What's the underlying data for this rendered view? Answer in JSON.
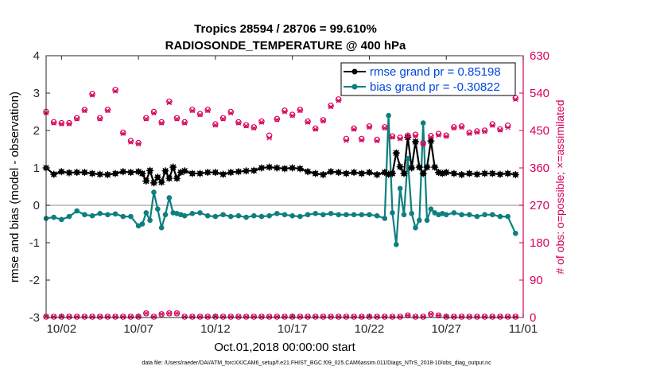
{
  "chart_data": {
    "type": "line",
    "title": "Tropics 28594 / 28706 = 99.610%",
    "subtitle": "RADIOSONDE_TEMPERATURE @ 400 hPa",
    "xlabel": "Oct.01,2018 00:00:00 start",
    "ylabel": "rmse and bias (model - observation)",
    "y2label": "# of obs: o=possible; ×=assimilated",
    "xlim": [
      0,
      31
    ],
    "ylim": [
      -3,
      4
    ],
    "y2lim": [
      0,
      630
    ],
    "xticks": [
      1,
      6,
      11,
      16,
      21,
      26,
      31
    ],
    "xtick_labels": [
      "10/02",
      "10/07",
      "10/12",
      "10/17",
      "10/22",
      "10/27",
      "11/01"
    ],
    "yticks": [
      -3,
      -2,
      -1,
      0,
      1,
      2,
      3,
      4
    ],
    "ytick_labels": [
      "-3",
      "-2",
      "-1",
      "0",
      "1",
      "2",
      "3",
      "4"
    ],
    "y2ticks": [
      0,
      90,
      180,
      270,
      360,
      450,
      540,
      630
    ],
    "y2tick_labels": [
      "0",
      "90",
      "180",
      "270",
      "360",
      "450",
      "540",
      "630"
    ],
    "legend_position": "top-right",
    "footer": "data file: /Users/raeder/DAI/ATM_forcXX/CAM6_setup/f.e21.FHIST_BGC.f09_025.CAM6assim.011/Diags_NTrS_2018-10/obs_diag_output.nc",
    "colors": {
      "rmse": "#000000",
      "bias": "#0e7f7f",
      "obs": "#d6005a",
      "zero": "#b3b3b3"
    },
    "series": [
      {
        "name": "rmse grand pr = 0.85198",
        "axis": "left",
        "x": [
          0,
          0.5,
          1,
          1.5,
          2,
          2.5,
          3,
          3.5,
          4,
          4.5,
          5,
          5.5,
          6,
          6.25,
          6.5,
          6.75,
          7,
          7.25,
          7.5,
          7.75,
          8,
          8.25,
          8.5,
          8.75,
          9,
          9.5,
          10,
          10.5,
          11,
          11.5,
          12,
          12.5,
          13,
          13.5,
          14,
          14.5,
          15,
          15.5,
          16,
          16.5,
          17,
          17.5,
          18,
          18.5,
          19,
          19.5,
          20,
          20.5,
          21,
          21.5,
          22,
          22.25,
          22.5,
          22.75,
          23,
          23.25,
          23.5,
          23.75,
          24,
          24.25,
          24.5,
          24.75,
          25,
          25.25,
          25.5,
          25.75,
          26,
          26.5,
          27,
          27.5,
          28,
          28.5,
          29,
          29.5,
          30,
          30.5
        ],
        "values": [
          1.0,
          0.83,
          0.9,
          0.87,
          0.88,
          0.88,
          0.85,
          0.83,
          0.82,
          0.85,
          0.9,
          0.88,
          0.9,
          0.85,
          0.65,
          0.93,
          0.6,
          0.75,
          0.62,
          0.92,
          0.72,
          1.02,
          0.72,
          0.88,
          0.92,
          0.85,
          0.85,
          0.88,
          0.88,
          0.83,
          0.88,
          0.9,
          0.92,
          0.93,
          1.0,
          1.02,
          1.0,
          0.98,
          1.0,
          0.98,
          0.9,
          0.85,
          0.82,
          0.9,
          0.88,
          0.85,
          0.88,
          0.85,
          0.88,
          0.82,
          0.88,
          0.83,
          0.85,
          1.4,
          1.03,
          0.85,
          1.82,
          1.0,
          1.7,
          1.02,
          0.85,
          1.02,
          1.72,
          1.02,
          0.88,
          0.85,
          0.88,
          0.85,
          0.82,
          0.85,
          0.83,
          0.85,
          0.85,
          0.83,
          0.85,
          0.82
        ]
      },
      {
        "name": "bias grand pr = -0.30822",
        "axis": "left",
        "x": [
          0,
          0.5,
          1,
          1.5,
          2,
          2.5,
          3,
          3.5,
          4,
          4.5,
          5,
          5.5,
          6,
          6.25,
          6.5,
          6.75,
          7,
          7.25,
          7.5,
          7.75,
          8,
          8.25,
          8.5,
          8.75,
          9,
          9.5,
          10,
          10.5,
          11,
          11.5,
          12,
          12.5,
          13,
          13.5,
          14,
          14.5,
          15,
          15.5,
          16,
          16.5,
          17,
          17.5,
          18,
          18.5,
          19,
          19.5,
          20,
          20.5,
          21,
          21.5,
          22,
          22.25,
          22.5,
          22.75,
          23,
          23.25,
          23.5,
          23.75,
          24,
          24.25,
          24.5,
          24.75,
          25,
          25.25,
          25.5,
          25.75,
          26,
          26.5,
          27,
          27.5,
          28,
          28.5,
          29,
          29.5,
          30,
          30.5
        ],
        "values": [
          -0.35,
          -0.32,
          -0.38,
          -0.3,
          -0.15,
          -0.25,
          -0.28,
          -0.22,
          -0.25,
          -0.23,
          -0.3,
          -0.3,
          -0.55,
          -0.5,
          -0.2,
          -0.4,
          0.35,
          -0.1,
          -0.6,
          -0.25,
          0.2,
          -0.2,
          -0.22,
          -0.25,
          -0.28,
          -0.22,
          -0.2,
          -0.28,
          -0.3,
          -0.25,
          -0.3,
          -0.28,
          -0.32,
          -0.28,
          -0.3,
          -0.28,
          -0.22,
          -0.25,
          -0.28,
          -0.3,
          -0.25,
          -0.22,
          -0.25,
          -0.22,
          -0.25,
          -0.25,
          -0.25,
          -0.25,
          -0.25,
          -0.28,
          -0.35,
          2.4,
          -0.2,
          -1.05,
          0.45,
          -0.25,
          1.25,
          -0.22,
          -0.6,
          -0.4,
          2.2,
          -0.4,
          -0.1,
          -0.2,
          -0.25,
          -0.22,
          -0.25,
          -0.2,
          -0.25,
          -0.25,
          -0.3,
          -0.25,
          -0.25,
          -0.3,
          -0.3,
          -0.75
        ]
      },
      {
        "name": "possible obs",
        "axis": "right",
        "x": [
          0,
          0.5,
          1,
          1.5,
          2,
          2.5,
          3,
          3.5,
          4,
          4.5,
          5,
          5.5,
          6,
          6.5,
          7,
          7.5,
          8,
          8.5,
          9,
          9.5,
          10,
          10.5,
          11,
          11.5,
          12,
          12.5,
          13,
          13.5,
          14,
          14.5,
          15,
          15.5,
          16,
          16.5,
          17,
          17.5,
          18,
          18.5,
          19,
          19.5,
          20,
          20.5,
          21,
          21.5,
          22,
          22.5,
          23,
          23.5,
          24,
          24.5,
          25,
          25.5,
          26,
          26.5,
          27,
          27.5,
          28,
          28.5,
          29,
          29.5,
          30,
          30.5
        ],
        "values": [
          495,
          470,
          468,
          468,
          480,
          500,
          538,
          480,
          500,
          548,
          445,
          425,
          420,
          480,
          495,
          470,
          520,
          480,
          470,
          500,
          490,
          500,
          465,
          480,
          495,
          470,
          463,
          458,
          472,
          438,
          478,
          498,
          488,
          500,
          472,
          455,
          475,
          510,
          525,
          430,
          455,
          430,
          460,
          428,
          458,
          436,
          433,
          438,
          440,
          420,
          437,
          442,
          438,
          458,
          460,
          445,
          448,
          450,
          465,
          453,
          462,
          528
        ],
        "assimilated": [
          492,
          468,
          466,
          466,
          478,
          498,
          535,
          478,
          498,
          545,
          443,
          422,
          418,
          478,
          492,
          468,
          517,
          478,
          468,
          498,
          488,
          498,
          463,
          478,
          492,
          468,
          461,
          456,
          470,
          432,
          476,
          495,
          486,
          498,
          470,
          453,
          473,
          507,
          522,
          426,
          453,
          427,
          458,
          425,
          456,
          434,
          430,
          436,
          437,
          417,
          434,
          439,
          436,
          456,
          458,
          443,
          446,
          448,
          462,
          451,
          457,
          525
        ]
      },
      {
        "name": "possible obs (bottom level)",
        "axis": "right",
        "x": [
          0,
          0.5,
          1,
          1.5,
          2,
          2.5,
          3,
          3.5,
          4,
          4.5,
          5,
          5.5,
          6,
          6.5,
          7,
          7.5,
          8,
          8.5,
          9,
          9.5,
          10,
          10.5,
          11,
          11.5,
          12,
          12.5,
          13,
          13.5,
          14,
          14.5,
          15,
          15.5,
          16,
          16.5,
          17,
          17.5,
          18,
          18.5,
          19,
          19.5,
          20,
          20.5,
          21,
          21.5,
          22,
          22.5,
          23,
          23.5,
          24,
          24.5,
          25,
          25.5,
          26,
          26.5,
          27,
          27.5,
          28,
          28.5,
          29,
          29.5,
          30,
          30.5
        ],
        "values": [
          2,
          2,
          2,
          2,
          2,
          2,
          2,
          2,
          2,
          2,
          2,
          2,
          2,
          10,
          2,
          8,
          10,
          10,
          2,
          2,
          2,
          2,
          2,
          2,
          2,
          2,
          2,
          2,
          2,
          2,
          2,
          2,
          2,
          2,
          2,
          2,
          2,
          2,
          2,
          2,
          2,
          2,
          2,
          2,
          2,
          2,
          2,
          5,
          2,
          2,
          8,
          5,
          2,
          2,
          2,
          2,
          2,
          2,
          2,
          2,
          2,
          2
        ]
      }
    ]
  }
}
